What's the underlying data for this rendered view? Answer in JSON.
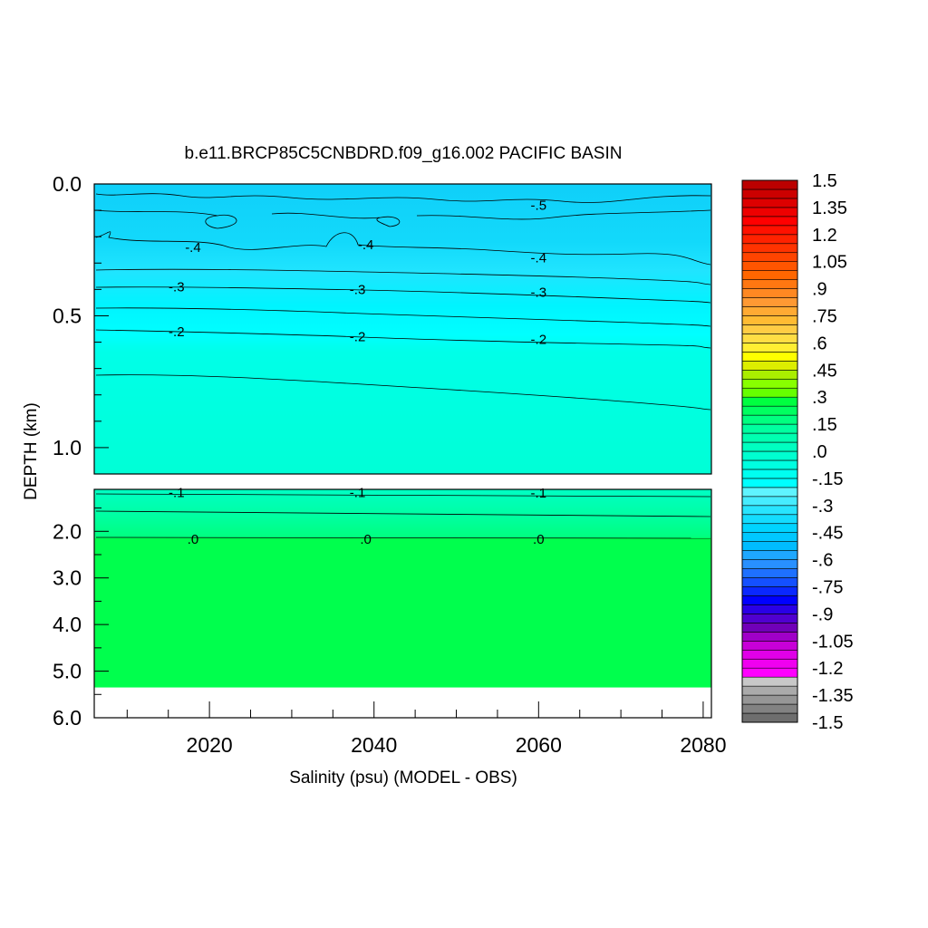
{
  "chart_data": {
    "type": "heatmap",
    "title": "b.e11.BRCP85C5CNBDRD.f09_g16.002 PACIFIC BASIN",
    "xlabel": "Salinity (psu) (MODEL - OBS)",
    "ylabel": "DEPTH (km)",
    "xlim": [
      2006,
      2081
    ],
    "x_ticks": [
      2020,
      2040,
      2060,
      2080
    ],
    "x_tick_labels": [
      "2020",
      "2040",
      "2060",
      "2080"
    ],
    "upper_panel": {
      "ylim": [
        0.0,
        1.1
      ],
      "y_ticks": [
        0.0,
        0.5,
        1.0
      ],
      "y_tick_labels": [
        "0.0",
        "0.5",
        "1.0"
      ]
    },
    "lower_panel": {
      "ylim": [
        1.1,
        6.0
      ],
      "y_ticks": [
        2.0,
        3.0,
        4.0,
        5.0,
        6.0
      ],
      "y_tick_labels": [
        "2.0",
        "3.0",
        "4.0",
        "5.0",
        "6.0"
      ],
      "ocean_floor_depth": 5.35
    },
    "contour_labels": [
      {
        "text": "-.5",
        "x": 2060,
        "y": 0.08
      },
      {
        "text": "-.4",
        "x": 2018,
        "y": 0.24
      },
      {
        "text": "-.4",
        "x": 2039,
        "y": 0.23
      },
      {
        "text": "-.4",
        "x": 2060,
        "y": 0.28
      },
      {
        "text": "-.3",
        "x": 2016,
        "y": 0.39
      },
      {
        "text": "-.3",
        "x": 2038,
        "y": 0.4
      },
      {
        "text": "-.3",
        "x": 2060,
        "y": 0.41
      },
      {
        "text": "-.2",
        "x": 2016,
        "y": 0.56
      },
      {
        "text": "-.2",
        "x": 2038,
        "y": 0.58
      },
      {
        "text": "-.2",
        "x": 2060,
        "y": 0.59
      },
      {
        "text": "-.1",
        "x": 2016,
        "y": 1.17
      },
      {
        "text": "-.1",
        "x": 2038,
        "y": 1.17
      },
      {
        "text": "-.1",
        "x": 2060,
        "y": 1.18
      },
      {
        "text": ".0",
        "x": 2018,
        "y": 2.17
      },
      {
        "text": ".0",
        "x": 2039,
        "y": 2.17
      },
      {
        "text": ".0",
        "x": 2060,
        "y": 2.17
      }
    ],
    "colorbar": {
      "min": -1.5,
      "max": 1.5,
      "step": 0.075,
      "labels": [
        "1.5",
        "1.35",
        "1.2",
        "1.05",
        ".9",
        ".75",
        ".6",
        ".45",
        ".3",
        ".15",
        ".0",
        "-.15",
        "-.3",
        "-.45",
        "-.6",
        "-.75",
        "-.9",
        "-1.05",
        "-1.2",
        "-1.35",
        "-1.5"
      ],
      "colors": [
        "#6e6e6e",
        "#828282",
        "#969696",
        "#aaaaaa",
        "#c8c8c8",
        "#ff00ff",
        "#f000f0",
        "#e000e8",
        "#c800d8",
        "#a000c8",
        "#7000b8",
        "#5000d0",
        "#2a00e6",
        "#0000ff",
        "#0a28ff",
        "#1450ff",
        "#1e70ff",
        "#2890ff",
        "#1ea8ff",
        "#00bcff",
        "#00c8ff",
        "#00d4ff",
        "#14dcff",
        "#28e4ff",
        "#46ecff",
        "#5ff4ff",
        "#00ffff",
        "#00fff0",
        "#00ffe0",
        "#00ffd0",
        "#00ffc0",
        "#00ffb0",
        "#00ffa0",
        "#00ff80",
        "#00ff60",
        "#00ff40",
        "#66ff00",
        "#88ff00",
        "#aaee00",
        "#ddee00",
        "#ffff00",
        "#ffee33",
        "#ffdd44",
        "#ffcc44",
        "#ffbb33",
        "#ffaa33",
        "#ff9933",
        "#ff8822",
        "#ff7711",
        "#ff6600",
        "#ff5500",
        "#ff4400",
        "#ff3300",
        "#ff2200",
        "#ff1100",
        "#ff0000",
        "#ee0000",
        "#dd0000",
        "#cc0000",
        "#bb0000"
      ]
    }
  }
}
